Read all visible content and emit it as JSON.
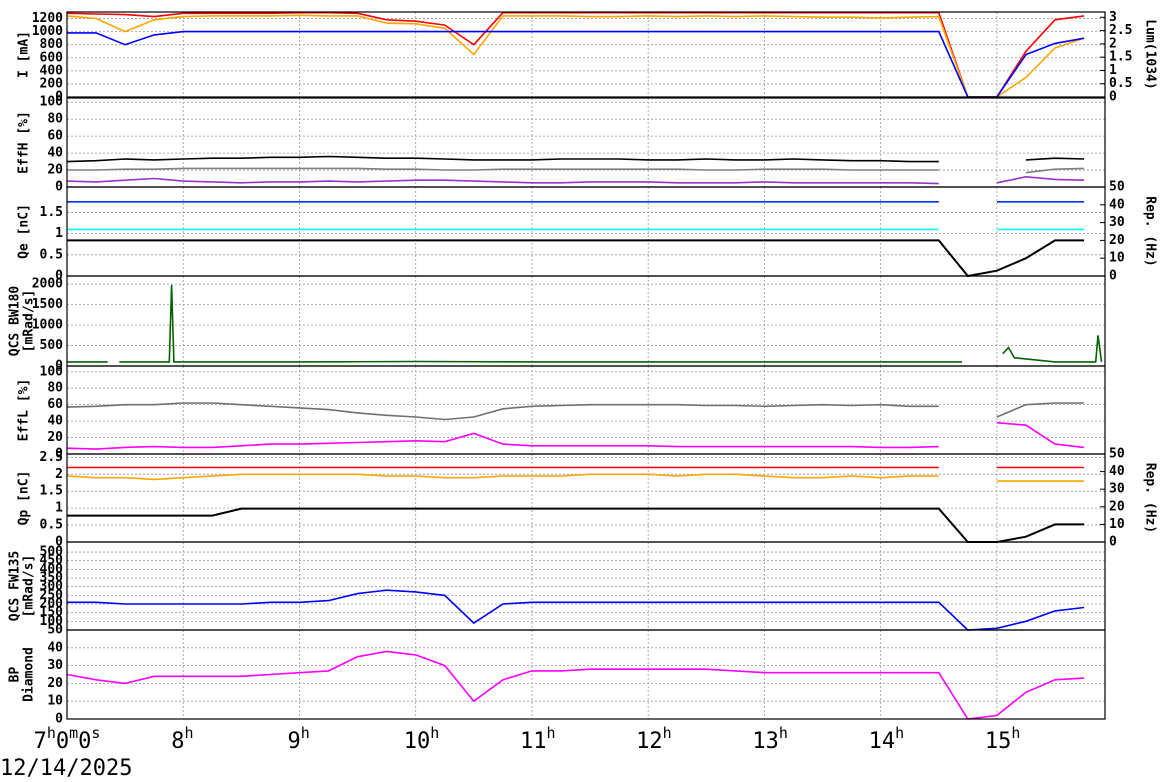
{
  "date": "12/14/2025",
  "chart_data": [
    {
      "type": "line",
      "ylabel": [
        "I [mA]"
      ],
      "ylim": [
        0,
        1300
      ],
      "yticks": [
        0,
        200,
        400,
        600,
        800,
        1000,
        1200
      ],
      "y2label": "Lum(1034)",
      "y2lim": [
        0,
        3.2
      ],
      "y2ticks": [
        0,
        0.5,
        1,
        1.5,
        2,
        2.5,
        3
      ],
      "x": [
        7,
        7.25,
        7.5,
        7.75,
        8,
        8.25,
        8.5,
        8.75,
        9,
        9.25,
        9.5,
        9.75,
        10,
        10.25,
        10.5,
        10.75,
        11,
        11.25,
        11.5,
        11.75,
        12,
        12.25,
        12.5,
        12.75,
        13,
        13.25,
        13.5,
        13.75,
        14,
        14.25,
        14.5,
        14.75,
        15,
        15.25,
        15.5,
        15.75
      ],
      "series": [
        {
          "color": "#ff0000",
          "values": [
            1280,
            1270,
            1260,
            1230,
            1280,
            1280,
            1280,
            1280,
            1290,
            1290,
            1280,
            1180,
            1160,
            1100,
            800,
            1290,
            1290,
            1290,
            1290,
            1290,
            1290,
            1290,
            1290,
            1290,
            1290,
            1290,
            1290,
            1290,
            1290,
            1290,
            1290,
            0,
            0,
            700,
            1180,
            1240
          ]
        },
        {
          "color": "#ffa500",
          "values": [
            1240,
            1200,
            1000,
            1180,
            1230,
            1240,
            1240,
            1240,
            1250,
            1240,
            1240,
            1130,
            1120,
            1050,
            650,
            1240,
            1240,
            1240,
            1230,
            1230,
            1240,
            1230,
            1240,
            1230,
            1240,
            1230,
            1220,
            1220,
            1210,
            1220,
            1230,
            0,
            0,
            300,
            750,
            900
          ]
        },
        {
          "color": "#0000ff",
          "values": [
            980,
            980,
            800,
            950,
            1000,
            1000,
            1000,
            1000,
            1000,
            1000,
            1000,
            1000,
            1000,
            1000,
            1000,
            1000,
            1000,
            1000,
            1000,
            1000,
            1000,
            1000,
            1000,
            1000,
            1000,
            1000,
            1000,
            1000,
            1000,
            1000,
            1000,
            0,
            0,
            650,
            820,
            900
          ]
        }
      ]
    },
    {
      "type": "line",
      "ylabel": [
        "EffH [%]"
      ],
      "ylim": [
        0,
        105
      ],
      "yticks": [
        0,
        20,
        40,
        60,
        80,
        100
      ],
      "x": [
        7,
        7.25,
        7.5,
        7.75,
        8,
        8.25,
        8.5,
        8.75,
        9,
        9.25,
        9.5,
        9.75,
        10,
        10.25,
        10.5,
        10.75,
        11,
        11.25,
        11.5,
        11.75,
        12,
        12.25,
        12.5,
        12.75,
        13,
        13.25,
        13.5,
        13.75,
        14,
        14.25,
        14.5,
        14.75,
        15,
        15.25,
        15.5,
        15.75
      ],
      "series": [
        {
          "color": "#000000",
          "values": [
            30,
            31,
            33,
            32,
            33,
            34,
            34,
            35,
            35,
            36,
            35,
            34,
            34,
            33,
            32,
            32,
            32,
            33,
            33,
            33,
            32,
            32,
            33,
            32,
            32,
            33,
            32,
            31,
            31,
            30,
            30,
            null,
            null,
            32,
            34,
            33
          ]
        },
        {
          "color": "#808080",
          "values": [
            20,
            20,
            21,
            21,
            22,
            22,
            22,
            22,
            22,
            22,
            22,
            21,
            21,
            20,
            20,
            21,
            21,
            21,
            21,
            21,
            21,
            21,
            20,
            20,
            21,
            21,
            21,
            20,
            20,
            20,
            20,
            null,
            null,
            17,
            21,
            22
          ]
        },
        {
          "color": "#9932cc",
          "values": [
            7,
            6,
            8,
            10,
            7,
            6,
            5,
            6,
            6,
            7,
            6,
            7,
            8,
            8,
            7,
            6,
            5,
            5,
            6,
            6,
            6,
            5,
            5,
            5,
            6,
            5,
            5,
            5,
            5,
            5,
            4,
            null,
            5,
            12,
            9,
            8
          ]
        }
      ]
    },
    {
      "type": "line",
      "ylabel": [
        "Qe [nC]"
      ],
      "ylim": [
        0,
        2.1
      ],
      "yticks": [
        0,
        0.5,
        1,
        1.5
      ],
      "y2label": "Rep. (Hz)",
      "y2lim": [
        0,
        50
      ],
      "y2ticks": [
        0,
        10,
        20,
        30,
        40,
        50
      ],
      "x": [
        7,
        7.25,
        7.5,
        7.75,
        8,
        8.25,
        8.5,
        8.75,
        9,
        9.25,
        9.5,
        9.75,
        10,
        10.25,
        10.5,
        10.75,
        11,
        11.25,
        11.5,
        11.75,
        12,
        12.25,
        12.5,
        12.75,
        13,
        13.25,
        13.5,
        13.75,
        14,
        14.25,
        14.5,
        14.75,
        15,
        15.25,
        15.5,
        15.75
      ],
      "series": [
        {
          "color": "#0033ee",
          "values": [
            1.75,
            1.75,
            1.75,
            1.75,
            1.75,
            1.75,
            1.75,
            1.75,
            1.75,
            1.75,
            1.75,
            1.75,
            1.75,
            1.75,
            1.75,
            1.75,
            1.75,
            1.75,
            1.75,
            1.75,
            1.75,
            1.75,
            1.75,
            1.75,
            1.75,
            1.75,
            1.75,
            1.75,
            1.75,
            1.75,
            1.75,
            null,
            1.75,
            1.75,
            1.75,
            1.75
          ]
        },
        {
          "color": "#00ffff",
          "values": [
            1.1,
            1.1,
            1.1,
            1.1,
            1.1,
            1.1,
            1.1,
            1.1,
            1.1,
            1.1,
            1.1,
            1.1,
            1.1,
            1.1,
            1.1,
            1.1,
            1.1,
            1.1,
            1.1,
            1.1,
            1.1,
            1.1,
            1.1,
            1.1,
            1.1,
            1.1,
            1.1,
            1.1,
            1.1,
            1.1,
            1.1,
            null,
            1.1,
            1.1,
            1.1,
            1.1
          ]
        },
        {
          "color": "#000000",
          "axis": "y2",
          "values": [
            20,
            20,
            20,
            20,
            20,
            20,
            20,
            20,
            20,
            20,
            20,
            20,
            20,
            20,
            20,
            20,
            20,
            20,
            20,
            20,
            20,
            20,
            20,
            20,
            20,
            20,
            20,
            20,
            20,
            20,
            20,
            0,
            3,
            10,
            20,
            20
          ]
        }
      ]
    },
    {
      "type": "line",
      "ylabel": [
        "QCS BW180",
        "[mRad/s]"
      ],
      "ylim": [
        0,
        2200
      ],
      "yticks": [
        0,
        500,
        1000,
        1500,
        2000
      ],
      "x": [
        7.0,
        7.35,
        7.4,
        7.45,
        7.88,
        7.9,
        7.92,
        9.0,
        10.0,
        11.0,
        12.0,
        13.0,
        14.0,
        14.7,
        14.75,
        15.05,
        15.1,
        15.15,
        15.5,
        15.85,
        15.87,
        15.9
      ],
      "series": [
        {
          "color": "#006400",
          "values": [
            100,
            100,
            null,
            100,
            100,
            1980,
            100,
            100,
            110,
            100,
            100,
            100,
            100,
            100,
            null,
            300,
            450,
            200,
            100,
            100,
            750,
            100
          ]
        }
      ]
    },
    {
      "type": "line",
      "ylabel": [
        "EffL [%]"
      ],
      "ylim": [
        0,
        107
      ],
      "yticks": [
        0,
        20,
        40,
        60,
        80,
        100
      ],
      "x": [
        7,
        7.25,
        7.5,
        7.75,
        8,
        8.25,
        8.5,
        8.75,
        9,
        9.25,
        9.5,
        9.75,
        10,
        10.25,
        10.5,
        10.75,
        11,
        11.25,
        11.5,
        11.75,
        12,
        12.25,
        12.5,
        12.75,
        13,
        13.25,
        13.5,
        13.75,
        14,
        14.25,
        14.5,
        14.75,
        15,
        15.25,
        15.5,
        15.75
      ],
      "series": [
        {
          "color": "#707070",
          "values": [
            57,
            58,
            60,
            60,
            62,
            62,
            60,
            58,
            56,
            54,
            50,
            47,
            45,
            42,
            45,
            55,
            58,
            59,
            60,
            60,
            60,
            60,
            59,
            59,
            58,
            59,
            60,
            59,
            60,
            58,
            58,
            null,
            45,
            60,
            62,
            62
          ]
        },
        {
          "color": "#ff00ff",
          "values": [
            7,
            6,
            8,
            9,
            8,
            8,
            10,
            12,
            12,
            13,
            14,
            15,
            16,
            15,
            25,
            12,
            10,
            10,
            10,
            10,
            10,
            9,
            9,
            9,
            9,
            9,
            9,
            9,
            8,
            8,
            9,
            null,
            38,
            35,
            12,
            8
          ]
        }
      ]
    },
    {
      "type": "line",
      "ylabel": [
        "Qp [nC]"
      ],
      "ylim": [
        0,
        2.6
      ],
      "yticks": [
        0,
        0.5,
        1,
        1.5,
        2,
        2.5
      ],
      "y2label": "Rep. (Hz)",
      "y2lim": [
        0,
        50
      ],
      "y2ticks": [
        0,
        10,
        20,
        30,
        40,
        50
      ],
      "x": [
        7,
        7.25,
        7.5,
        7.75,
        8,
        8.25,
        8.5,
        8.75,
        9,
        9.25,
        9.5,
        9.75,
        10,
        10.25,
        10.5,
        10.75,
        11,
        11.25,
        11.5,
        11.75,
        12,
        12.25,
        12.5,
        12.75,
        13,
        13.25,
        13.5,
        13.75,
        14,
        14.25,
        14.5,
        14.75,
        15,
        15.25,
        15.5,
        15.75
      ],
      "series": [
        {
          "color": "#ff0000",
          "values": [
            2.2,
            2.2,
            2.2,
            2.2,
            2.2,
            2.2,
            2.2,
            2.2,
            2.2,
            2.2,
            2.2,
            2.2,
            2.2,
            2.2,
            2.2,
            2.2,
            2.2,
            2.2,
            2.2,
            2.2,
            2.2,
            2.2,
            2.2,
            2.2,
            2.2,
            2.2,
            2.2,
            2.2,
            2.2,
            2.2,
            2.2,
            null,
            2.2,
            2.2,
            2.2,
            2.2
          ]
        },
        {
          "color": "#ffa500",
          "values": [
            1.95,
            1.9,
            1.9,
            1.85,
            1.9,
            1.95,
            2.0,
            2.0,
            2.0,
            2.0,
            2.0,
            1.95,
            1.95,
            1.9,
            1.9,
            1.95,
            1.95,
            1.95,
            2.0,
            2.0,
            2.0,
            1.95,
            2.0,
            2.0,
            1.95,
            1.9,
            1.9,
            1.95,
            1.9,
            1.95,
            1.95,
            null,
            1.8,
            1.8,
            1.8,
            1.8
          ]
        },
        {
          "color": "#000000",
          "axis": "y2",
          "values": [
            15,
            15,
            15,
            15,
            15,
            15,
            19,
            19,
            19,
            19,
            19,
            19,
            19,
            19,
            19,
            19,
            19,
            19,
            19,
            19,
            19,
            19,
            19,
            19,
            19,
            19,
            19,
            19,
            19,
            19,
            19,
            0,
            0,
            3,
            10,
            10
          ]
        }
      ]
    },
    {
      "type": "line",
      "ylabel": [
        "QCS FW135",
        "[mRad/s]"
      ],
      "ylim": [
        50,
        558
      ],
      "yticks": [
        50,
        100,
        150,
        200,
        250,
        300,
        350,
        400,
        450,
        500
      ],
      "x": [
        7,
        7.25,
        7.5,
        7.75,
        8,
        8.25,
        8.5,
        8.75,
        9,
        9.25,
        9.5,
        9.75,
        10,
        10.25,
        10.5,
        10.75,
        11,
        11.25,
        11.5,
        11.75,
        12,
        12.25,
        12.5,
        12.75,
        13,
        13.25,
        13.5,
        13.75,
        14,
        14.25,
        14.5,
        14.75,
        15,
        15.25,
        15.5,
        15.75
      ],
      "series": [
        {
          "color": "#0000ff",
          "values": [
            210,
            210,
            200,
            200,
            200,
            200,
            200,
            210,
            210,
            220,
            260,
            280,
            270,
            250,
            90,
            200,
            210,
            210,
            210,
            210,
            210,
            210,
            210,
            210,
            210,
            210,
            210,
            210,
            210,
            210,
            210,
            50,
            60,
            100,
            160,
            180
          ]
        }
      ]
    },
    {
      "type": "line",
      "ylabel": [
        "BP",
        "Diamond"
      ],
      "ylim": [
        0,
        50
      ],
      "yticks": [
        0,
        10,
        20,
        30,
        40
      ],
      "xlim": [
        7,
        15.93
      ],
      "xticks": [
        {
          "value": 7,
          "label": "7h0m0s"
        },
        {
          "value": 8,
          "label": "8h"
        },
        {
          "value": 9,
          "label": "9h"
        },
        {
          "value": 10,
          "label": "10h"
        },
        {
          "value": 11,
          "label": "11h"
        },
        {
          "value": 12,
          "label": "12h"
        },
        {
          "value": 13,
          "label": "13h"
        },
        {
          "value": 14,
          "label": "14h"
        },
        {
          "value": 15,
          "label": "15h"
        }
      ],
      "x": [
        7,
        7.25,
        7.5,
        7.75,
        8,
        8.25,
        8.5,
        8.75,
        9,
        9.25,
        9.5,
        9.75,
        10,
        10.25,
        10.5,
        10.75,
        11,
        11.25,
        11.5,
        11.75,
        12,
        12.25,
        12.5,
        12.75,
        13,
        13.25,
        13.5,
        13.75,
        14,
        14.25,
        14.5,
        14.75,
        15,
        15.25,
        15.5,
        15.75
      ],
      "series": [
        {
          "color": "#ff00ff",
          "values": [
            25,
            22,
            20,
            24,
            24,
            24,
            24,
            25,
            26,
            27,
            35,
            38,
            36,
            30,
            10,
            22,
            27,
            27,
            28,
            28,
            28,
            28,
            28,
            27,
            26,
            26,
            26,
            26,
            26,
            26,
            26,
            0,
            2,
            15,
            22,
            23
          ]
        }
      ]
    }
  ]
}
